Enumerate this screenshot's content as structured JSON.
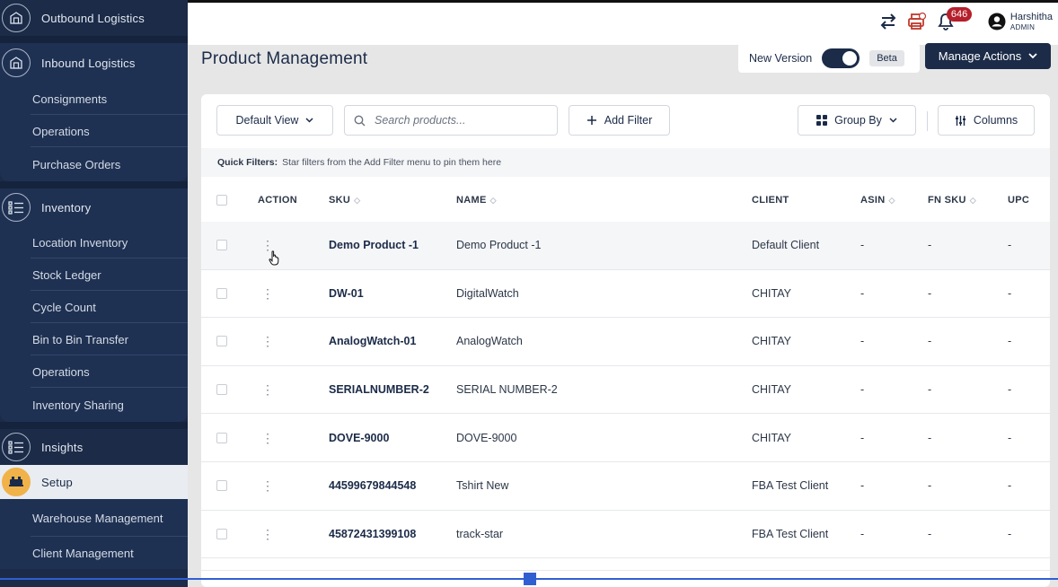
{
  "sidebar": {
    "outbound": "Outbound Logistics",
    "inbound": "Inbound Logistics",
    "inbound_items": [
      "Consignments",
      "Operations",
      "Purchase Orders"
    ],
    "inventory": "Inventory",
    "inventory_items": [
      "Location Inventory",
      "Stock Ledger",
      "Cycle Count",
      "Bin to Bin Transfer",
      "Operations",
      "Inventory Sharing"
    ],
    "insights": "Insights",
    "setup": "Setup",
    "setup_items": [
      "Warehouse Management",
      "Client Management"
    ]
  },
  "topbar": {
    "notification_count": "646",
    "user_name": "Harshitha",
    "user_role": "ADMIN"
  },
  "header": {
    "title": "Product Management",
    "new_version_label": "New Version",
    "new_version_on": true,
    "beta_label": "Beta",
    "manage_actions_label": "Manage Actions"
  },
  "toolbar": {
    "view_label": "Default View",
    "search_placeholder": "Search products...",
    "add_filter_label": "Add Filter",
    "group_by_label": "Group By",
    "columns_label": "Columns"
  },
  "quick_filters": {
    "label": "Quick Filters:",
    "text": "Star filters from the Add Filter menu to pin them here"
  },
  "table": {
    "columns": {
      "action": "ACTION",
      "sku": "SKU",
      "name": "NAME",
      "client": "CLIENT",
      "asin": "ASIN",
      "fn_sku": "FN SKU",
      "upc": "UPC"
    },
    "rows": [
      {
        "sku": "Demo Product -1",
        "name": "Demo Product -1",
        "client": "Default Client",
        "asin": "-",
        "fn_sku": "-",
        "upc": "-"
      },
      {
        "sku": "DW-01",
        "name": "DigitalWatch",
        "client": "CHITAY",
        "asin": "-",
        "fn_sku": "-",
        "upc": "-"
      },
      {
        "sku": "AnalogWatch-01",
        "name": "AnalogWatch",
        "client": "CHITAY",
        "asin": "-",
        "fn_sku": "-",
        "upc": "-"
      },
      {
        "sku": "SERIALNUMBER-2",
        "name": "SERIAL NUMBER-2",
        "client": "CHITAY",
        "asin": "-",
        "fn_sku": "-",
        "upc": "-"
      },
      {
        "sku": "DOVE-9000",
        "name": "DOVE-9000",
        "client": "CHITAY",
        "asin": "-",
        "fn_sku": "-",
        "upc": "-"
      },
      {
        "sku": "44599679844548",
        "name": "Tshirt New",
        "client": "FBA Test Client",
        "asin": "-",
        "fn_sku": "-",
        "upc": "-"
      },
      {
        "sku": "45872431399108",
        "name": "track-star",
        "client": "FBA Test Client",
        "asin": "-",
        "fn_sku": "-",
        "upc": "-"
      }
    ]
  },
  "colors": {
    "navy": "#1b2b48",
    "setup_accent": "#f1b24a",
    "badge": "#b51f2b"
  }
}
